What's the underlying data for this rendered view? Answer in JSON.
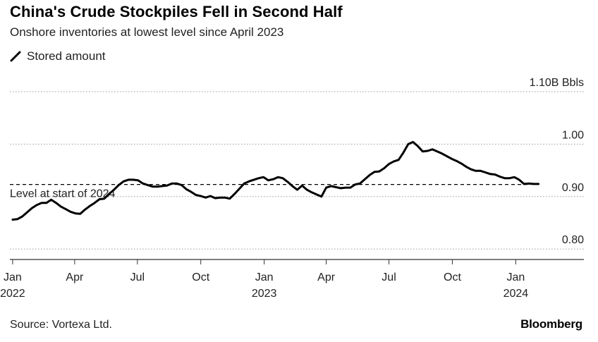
{
  "header": {
    "title": "China's Crude Stockpiles Fell in Second Half",
    "subtitle": "Onshore inventories at lowest level since April 2023"
  },
  "footer": {
    "source": "Source: Vortexa Ltd.",
    "brand": "Bloomberg"
  },
  "colors": {
    "line": "#000000",
    "grid": "#9a9a9a",
    "axis": "#333333"
  },
  "chart_data": {
    "type": "line",
    "ylim": [
      0.78,
      1.1
    ],
    "y_ticks": [
      {
        "value": 1.1,
        "label": "1.10B Bbls"
      },
      {
        "value": 1.0,
        "label": "1.00"
      },
      {
        "value": 0.9,
        "label": "0.90"
      },
      {
        "value": 0.8,
        "label": "0.80"
      }
    ],
    "x_ticks": [
      {
        "date": "2022-01-01",
        "label": "Jan",
        "year": "2022"
      },
      {
        "date": "2022-04-01",
        "label": "Apr",
        "year": ""
      },
      {
        "date": "2022-07-01",
        "label": "Jul",
        "year": ""
      },
      {
        "date": "2022-10-01",
        "label": "Oct",
        "year": ""
      },
      {
        "date": "2023-01-01",
        "label": "Jan",
        "year": "2023"
      },
      {
        "date": "2023-04-01",
        "label": "Apr",
        "year": ""
      },
      {
        "date": "2023-07-01",
        "label": "Jul",
        "year": ""
      },
      {
        "date": "2023-10-01",
        "label": "Oct",
        "year": ""
      },
      {
        "date": "2024-01-01",
        "label": "Jan",
        "year": "2024"
      }
    ],
    "xlim": [
      "2021-12-28",
      "2024-03-01"
    ],
    "reference_line": {
      "value": 0.923,
      "label": "Level at start of 2024"
    },
    "series": [
      {
        "name": "Stored amount",
        "points": [
          [
            "2022-01-01",
            0.856
          ],
          [
            "2022-01-08",
            0.857
          ],
          [
            "2022-01-15",
            0.862
          ],
          [
            "2022-01-22",
            0.87
          ],
          [
            "2022-01-29",
            0.878
          ],
          [
            "2022-02-05",
            0.884
          ],
          [
            "2022-02-12",
            0.888
          ],
          [
            "2022-02-19",
            0.888
          ],
          [
            "2022-02-26",
            0.894
          ],
          [
            "2022-03-05",
            0.888
          ],
          [
            "2022-03-12",
            0.881
          ],
          [
            "2022-03-19",
            0.876
          ],
          [
            "2022-03-26",
            0.871
          ],
          [
            "2022-04-02",
            0.868
          ],
          [
            "2022-04-09",
            0.867
          ],
          [
            "2022-04-16",
            0.875
          ],
          [
            "2022-04-23",
            0.882
          ],
          [
            "2022-04-30",
            0.888
          ],
          [
            "2022-05-07",
            0.895
          ],
          [
            "2022-05-14",
            0.896
          ],
          [
            "2022-05-21",
            0.905
          ],
          [
            "2022-05-28",
            0.913
          ],
          [
            "2022-06-04",
            0.922
          ],
          [
            "2022-06-11",
            0.929
          ],
          [
            "2022-06-18",
            0.932
          ],
          [
            "2022-06-25",
            0.932
          ],
          [
            "2022-07-02",
            0.931
          ],
          [
            "2022-07-09",
            0.925
          ],
          [
            "2022-07-16",
            0.922
          ],
          [
            "2022-07-23",
            0.919
          ],
          [
            "2022-07-30",
            0.919
          ],
          [
            "2022-08-06",
            0.92
          ],
          [
            "2022-08-13",
            0.921
          ],
          [
            "2022-08-20",
            0.925
          ],
          [
            "2022-08-27",
            0.925
          ],
          [
            "2022-09-03",
            0.922
          ],
          [
            "2022-09-10",
            0.914
          ],
          [
            "2022-09-17",
            0.909
          ],
          [
            "2022-09-24",
            0.903
          ],
          [
            "2022-10-01",
            0.901
          ],
          [
            "2022-10-08",
            0.898
          ],
          [
            "2022-10-15",
            0.901
          ],
          [
            "2022-10-22",
            0.897
          ],
          [
            "2022-10-29",
            0.898
          ],
          [
            "2022-11-05",
            0.898
          ],
          [
            "2022-11-12",
            0.896
          ],
          [
            "2022-11-19",
            0.905
          ],
          [
            "2022-11-26",
            0.915
          ],
          [
            "2022-12-03",
            0.925
          ],
          [
            "2022-12-10",
            0.929
          ],
          [
            "2022-12-17",
            0.932
          ],
          [
            "2022-12-24",
            0.935
          ],
          [
            "2022-12-31",
            0.937
          ],
          [
            "2023-01-07",
            0.931
          ],
          [
            "2023-01-14",
            0.933
          ],
          [
            "2023-01-21",
            0.937
          ],
          [
            "2023-01-28",
            0.935
          ],
          [
            "2023-02-04",
            0.928
          ],
          [
            "2023-02-11",
            0.92
          ],
          [
            "2023-02-18",
            0.913
          ],
          [
            "2023-02-25",
            0.921
          ],
          [
            "2023-03-04",
            0.913
          ],
          [
            "2023-03-11",
            0.908
          ],
          [
            "2023-03-18",
            0.904
          ],
          [
            "2023-03-25",
            0.9
          ],
          [
            "2023-04-01",
            0.917
          ],
          [
            "2023-04-08",
            0.92
          ],
          [
            "2023-04-15",
            0.918
          ],
          [
            "2023-04-22",
            0.916
          ],
          [
            "2023-04-29",
            0.917
          ],
          [
            "2023-05-06",
            0.917
          ],
          [
            "2023-05-13",
            0.923
          ],
          [
            "2023-05-20",
            0.925
          ],
          [
            "2023-05-27",
            0.933
          ],
          [
            "2023-06-03",
            0.941
          ],
          [
            "2023-06-10",
            0.947
          ],
          [
            "2023-06-17",
            0.948
          ],
          [
            "2023-06-24",
            0.954
          ],
          [
            "2023-07-01",
            0.962
          ],
          [
            "2023-07-08",
            0.967
          ],
          [
            "2023-07-15",
            0.97
          ],
          [
            "2023-07-22",
            0.984
          ],
          [
            "2023-07-29",
            1.0
          ],
          [
            "2023-08-05",
            1.004
          ],
          [
            "2023-08-12",
            0.996
          ],
          [
            "2023-08-19",
            0.986
          ],
          [
            "2023-08-26",
            0.987
          ],
          [
            "2023-09-02",
            0.99
          ],
          [
            "2023-09-09",
            0.986
          ],
          [
            "2023-09-16",
            0.982
          ],
          [
            "2023-09-23",
            0.977
          ],
          [
            "2023-09-30",
            0.972
          ],
          [
            "2023-10-07",
            0.968
          ],
          [
            "2023-10-14",
            0.963
          ],
          [
            "2023-10-21",
            0.957
          ],
          [
            "2023-10-28",
            0.952
          ],
          [
            "2023-11-04",
            0.949
          ],
          [
            "2023-11-11",
            0.949
          ],
          [
            "2023-11-18",
            0.946
          ],
          [
            "2023-11-25",
            0.943
          ],
          [
            "2023-12-02",
            0.942
          ],
          [
            "2023-12-09",
            0.938
          ],
          [
            "2023-12-16",
            0.935
          ],
          [
            "2023-12-23",
            0.935
          ],
          [
            "2023-12-30",
            0.937
          ],
          [
            "2024-01-06",
            0.932
          ],
          [
            "2024-01-13",
            0.924
          ],
          [
            "2024-01-20",
            0.925
          ],
          [
            "2024-01-27",
            0.924
          ],
          [
            "2024-02-03",
            0.924
          ]
        ]
      }
    ]
  }
}
